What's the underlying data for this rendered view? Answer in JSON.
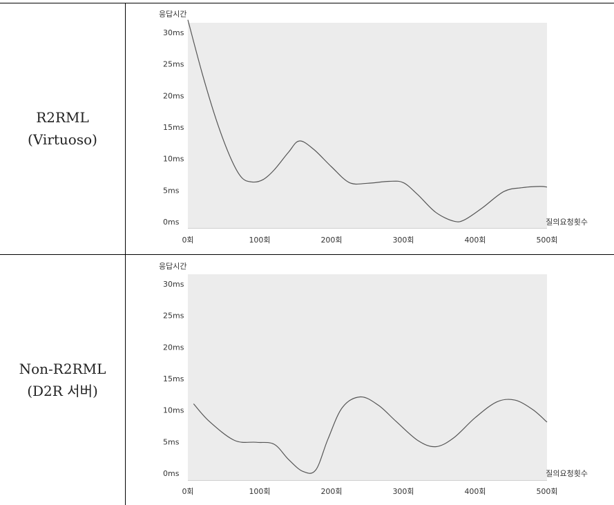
{
  "rows": [
    {
      "label_line1": "R2RML",
      "label_line2": "(Virtuoso)"
    },
    {
      "label_line1": "Non-R2RML",
      "label_line2": "(D2R 서버)"
    }
  ],
  "chart_data": [
    {
      "type": "line",
      "ylabel": "응답시간",
      "xlabel": "질의요청횟수",
      "ylim": [
        0,
        32
      ],
      "xlim": [
        0,
        500
      ],
      "yticks": [
        "0ms",
        "5ms",
        "10ms",
        "15ms",
        "20ms",
        "25ms",
        "30ms"
      ],
      "ytick_values": [
        0,
        5,
        10,
        15,
        20,
        25,
        30
      ],
      "xticks": [
        "0회",
        "100회",
        "200회",
        "300회",
        "400회",
        "500회"
      ],
      "xtick_values": [
        0,
        100,
        200,
        300,
        400,
        500
      ],
      "plot_bg": "#ececec",
      "line_color": "#555555",
      "series": [
        {
          "x": [
            0,
            20,
            40,
            60,
            75,
            90,
            105,
            120,
            140,
            155,
            175,
            200,
            225,
            250,
            280,
            300,
            320,
            345,
            370,
            385,
            410,
            440,
            465,
            490,
            500
          ],
          "y": [
            32,
            23.5,
            16,
            10,
            7,
            6.3,
            6.7,
            8.2,
            11,
            12.8,
            11.5,
            8.7,
            6.2,
            6.1,
            6.4,
            6.2,
            4.3,
            1.5,
            0.1,
            0.3,
            2.2,
            4.8,
            5.4,
            5.6,
            5.5
          ]
        }
      ]
    },
    {
      "type": "line",
      "ylabel": "응답시간",
      "xlabel": "질의요청횟수",
      "ylim": [
        0,
        32
      ],
      "xlim": [
        0,
        500
      ],
      "yticks": [
        "0ms",
        "5ms",
        "10ms",
        "15ms",
        "20ms",
        "25ms",
        "30ms"
      ],
      "ytick_values": [
        0,
        5,
        10,
        15,
        20,
        25,
        30
      ],
      "xticks": [
        "0회",
        "100회",
        "200회",
        "300회",
        "400회",
        "500회"
      ],
      "xtick_values": [
        0,
        100,
        200,
        300,
        400,
        500
      ],
      "plot_bg": "#ececec",
      "line_color": "#555555",
      "series": [
        {
          "x": [
            8,
            30,
            65,
            95,
            120,
            140,
            160,
            178,
            195,
            215,
            240,
            265,
            290,
            320,
            345,
            370,
            400,
            430,
            455,
            480,
            500
          ],
          "y": [
            11,
            8.2,
            5.2,
            4.9,
            4.6,
            2.2,
            0.3,
            0.5,
            5.4,
            10.4,
            12.1,
            10.8,
            8.2,
            5.2,
            4.2,
            5.6,
            8.8,
            11.3,
            11.6,
            10.1,
            8.1
          ]
        }
      ]
    }
  ]
}
